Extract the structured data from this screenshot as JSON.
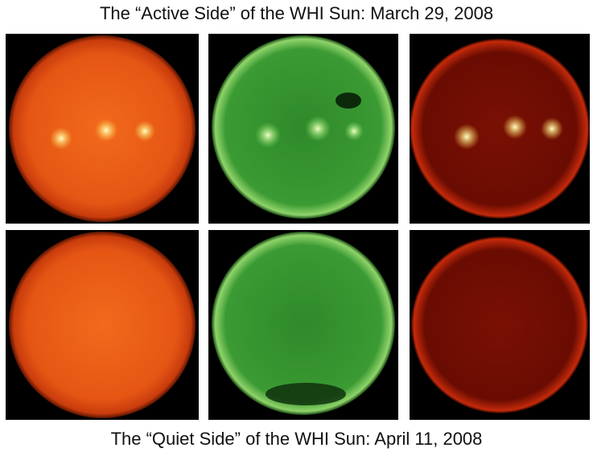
{
  "header": {
    "title": "The “Active Side” of the WHI Sun: March 29, 2008"
  },
  "footer": {
    "caption": "The “Quiet Side” of the WHI Sun:  April 11, 2008"
  }
}
